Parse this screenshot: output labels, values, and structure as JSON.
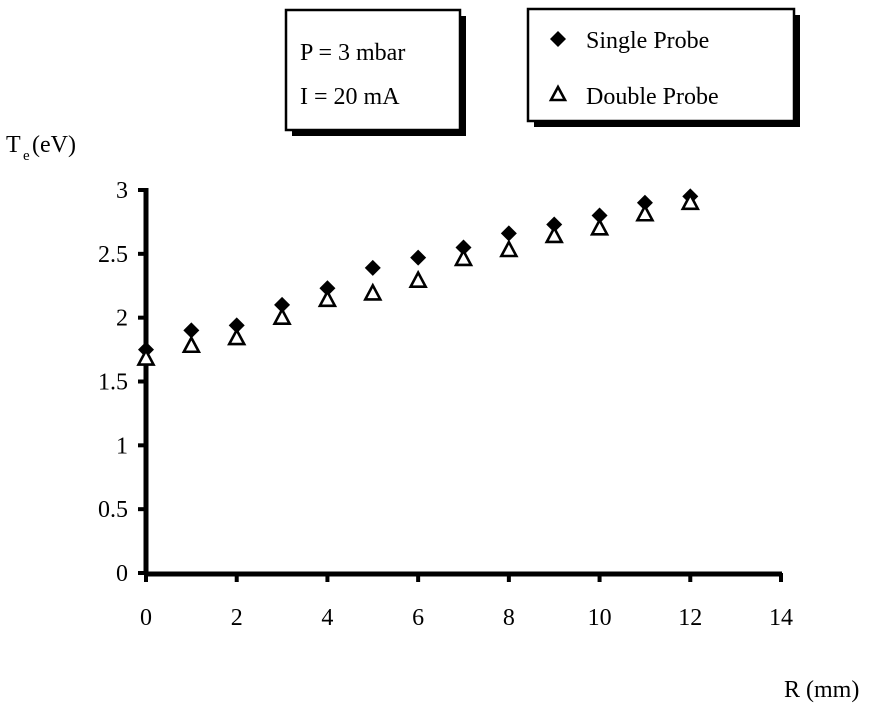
{
  "chart_data": {
    "type": "scatter",
    "title": "",
    "xlabel": "R (mm)",
    "ylabel": {
      "main": "T",
      "sub": "e",
      "unit": " (eV)"
    },
    "xlim": [
      0,
      14
    ],
    "ylim": [
      0,
      3
    ],
    "x_ticks": [
      "0",
      "2",
      "4",
      "6",
      "8",
      "10",
      "12",
      "14"
    ],
    "y_ticks": [
      "0",
      "0.5",
      "1",
      "1.5",
      "2",
      "2.5",
      "3"
    ],
    "grid": false,
    "legend_position": "top-right",
    "annotation": [
      "P = 3 mbar",
      "I = 20 mA"
    ],
    "series": [
      {
        "name": "Single Probe",
        "marker": "filled-diamond",
        "color": "#000000",
        "x": [
          0,
          1,
          2,
          3,
          4,
          5,
          6,
          7,
          8,
          9,
          10,
          11,
          12
        ],
        "y": [
          1.75,
          1.9,
          1.94,
          2.1,
          2.23,
          2.39,
          2.47,
          2.55,
          2.66,
          2.73,
          2.8,
          2.9,
          2.95
        ]
      },
      {
        "name": "Double Probe",
        "marker": "open-triangle",
        "color": "#000000",
        "x": [
          0,
          1,
          2,
          3,
          4,
          5,
          6,
          7,
          8,
          9,
          10,
          11,
          12
        ],
        "y": [
          1.68,
          1.78,
          1.84,
          2.0,
          2.14,
          2.19,
          2.29,
          2.46,
          2.53,
          2.64,
          2.7,
          2.81,
          2.9
        ]
      }
    ]
  }
}
